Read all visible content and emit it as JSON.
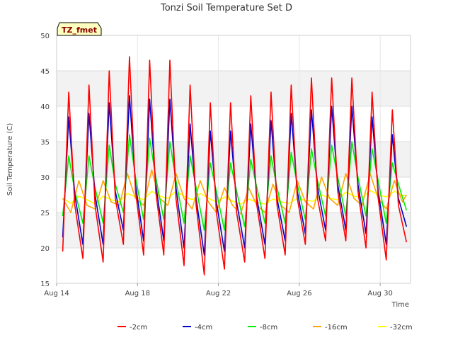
{
  "chart_data": {
    "type": "line",
    "title": "Tonzi Soil Temperature Set D",
    "xlabel": "Time",
    "ylabel": "Soil Temperature (C)",
    "badge": "TZ_fmet",
    "xlim": [
      14,
      31.5
    ],
    "ylim": [
      15,
      50
    ],
    "x_ticks": [
      {
        "value": 14,
        "label": "Aug 14"
      },
      {
        "value": 18,
        "label": "Aug 18"
      },
      {
        "value": 22,
        "label": "Aug 22"
      },
      {
        "value": 26,
        "label": "Aug 26"
      },
      {
        "value": 30,
        "label": "Aug 30"
      }
    ],
    "y_ticks": [
      15,
      20,
      25,
      30,
      35,
      40,
      45,
      50
    ],
    "grid": true,
    "legend_position": "bottom",
    "x_unit": "day of August",
    "series": [
      {
        "name": "-2cm",
        "color": "#ff0000",
        "x": [
          14.3,
          14.6,
          14.9,
          15.3,
          15.6,
          15.9,
          16.3,
          16.6,
          16.9,
          17.3,
          17.6,
          17.9,
          18.3,
          18.6,
          18.9,
          19.3,
          19.6,
          19.9,
          20.3,
          20.6,
          20.9,
          21.3,
          21.6,
          21.9,
          22.3,
          22.6,
          22.9,
          23.3,
          23.6,
          23.9,
          24.3,
          24.6,
          24.9,
          25.3,
          25.6,
          25.9,
          26.3,
          26.6,
          26.9,
          27.3,
          27.6,
          27.9,
          28.3,
          28.6,
          28.9,
          29.3,
          29.6,
          29.9,
          30.3,
          30.6,
          30.9,
          31.3
        ],
        "y": [
          19.5,
          42.0,
          26.0,
          18.5,
          43.0,
          26.0,
          18.0,
          45.0,
          27.0,
          20.5,
          47.0,
          28.0,
          19.0,
          46.5,
          28.0,
          19.0,
          46.5,
          27.0,
          17.5,
          43.0,
          26.0,
          16.2,
          40.5,
          25.0,
          17.0,
          40.5,
          25.0,
          18.0,
          41.5,
          26.0,
          18.5,
          42.0,
          26.0,
          19.0,
          43.0,
          27.0,
          20.5,
          44.0,
          27.0,
          21.0,
          44.0,
          28.0,
          21.0,
          44.0,
          28.0,
          20.0,
          42.0,
          27.0,
          18.3,
          39.5,
          26.0,
          20.8
        ]
      },
      {
        "name": "-4cm",
        "color": "#0000cc",
        "x": [
          14.3,
          14.6,
          14.9,
          15.3,
          15.6,
          15.9,
          16.3,
          16.6,
          16.9,
          17.3,
          17.6,
          17.9,
          18.3,
          18.6,
          18.9,
          19.3,
          19.6,
          19.9,
          20.3,
          20.6,
          20.9,
          21.3,
          21.6,
          21.9,
          22.3,
          22.6,
          22.9,
          23.3,
          23.6,
          23.9,
          24.3,
          24.6,
          24.9,
          25.3,
          25.6,
          25.9,
          26.3,
          26.6,
          26.9,
          27.3,
          27.6,
          27.9,
          28.3,
          28.6,
          28.9,
          29.3,
          29.6,
          29.9,
          30.3,
          30.6,
          30.9,
          31.3
        ],
        "y": [
          21.5,
          38.5,
          27.5,
          20.5,
          39.0,
          27.5,
          20.5,
          40.5,
          28.0,
          22.5,
          41.5,
          29.0,
          21.0,
          41.0,
          29.0,
          21.0,
          41.0,
          28.5,
          20.0,
          37.5,
          27.0,
          19.0,
          36.5,
          26.5,
          19.5,
          36.5,
          26.5,
          20.0,
          37.5,
          27.0,
          20.5,
          38.0,
          27.0,
          21.0,
          39.0,
          28.0,
          22.0,
          39.5,
          28.5,
          22.5,
          40.0,
          29.0,
          22.5,
          40.0,
          29.0,
          22.0,
          38.5,
          28.0,
          20.5,
          36.0,
          27.0,
          23.0
        ]
      },
      {
        "name": "-8cm",
        "color": "#00ee00",
        "x": [
          14.3,
          14.6,
          14.9,
          15.3,
          15.6,
          15.9,
          16.3,
          16.6,
          16.9,
          17.3,
          17.6,
          17.9,
          18.3,
          18.6,
          18.9,
          19.3,
          19.6,
          19.9,
          20.3,
          20.6,
          20.9,
          21.3,
          21.6,
          21.9,
          22.3,
          22.6,
          22.9,
          23.3,
          23.6,
          23.9,
          24.3,
          24.6,
          24.9,
          25.3,
          25.6,
          25.9,
          26.3,
          26.6,
          26.9,
          27.3,
          27.6,
          27.9,
          28.3,
          28.6,
          28.9,
          29.3,
          29.6,
          29.9,
          30.3,
          30.6,
          30.9,
          31.3
        ],
        "y": [
          24.5,
          33.0,
          28.0,
          23.5,
          33.0,
          28.5,
          23.5,
          34.5,
          29.0,
          25.0,
          36.0,
          30.0,
          24.0,
          35.5,
          30.0,
          24.0,
          35.0,
          29.5,
          23.5,
          33.0,
          28.5,
          22.5,
          32.0,
          28.0,
          22.5,
          32.0,
          28.0,
          23.0,
          32.5,
          28.5,
          23.5,
          33.0,
          28.5,
          23.5,
          33.5,
          29.0,
          24.0,
          34.0,
          29.5,
          24.5,
          34.5,
          30.0,
          24.5,
          35.0,
          30.0,
          24.5,
          34.0,
          29.5,
          23.5,
          32.0,
          29.0,
          25.3
        ]
      },
      {
        "name": "-16cm",
        "color": "#ffa500",
        "x": [
          14.3,
          14.7,
          15.1,
          15.5,
          15.9,
          16.3,
          16.7,
          17.1,
          17.5,
          17.9,
          18.3,
          18.7,
          19.1,
          19.5,
          19.9,
          20.3,
          20.7,
          21.1,
          21.5,
          21.9,
          22.3,
          22.7,
          23.1,
          23.5,
          23.9,
          24.3,
          24.7,
          25.1,
          25.5,
          25.9,
          26.3,
          26.7,
          27.1,
          27.5,
          27.9,
          28.3,
          28.7,
          29.1,
          29.5,
          29.9,
          30.3,
          30.7,
          31.1,
          31.3
        ],
        "y": [
          27.0,
          25.0,
          29.5,
          26.0,
          25.5,
          29.5,
          26.5,
          26.0,
          30.5,
          27.0,
          26.0,
          31.0,
          27.0,
          26.0,
          30.5,
          27.0,
          25.5,
          29.5,
          26.5,
          25.0,
          28.5,
          26.0,
          24.8,
          28.5,
          26.0,
          25.0,
          29.0,
          26.0,
          25.0,
          29.5,
          26.5,
          25.5,
          30.0,
          27.0,
          26.0,
          30.5,
          27.0,
          26.0,
          30.5,
          27.0,
          25.5,
          29.5,
          26.5,
          27.5
        ]
      },
      {
        "name": "-32cm",
        "color": "#ffff00",
        "x": [
          14.3,
          14.7,
          15.1,
          15.5,
          15.9,
          16.3,
          16.7,
          17.1,
          17.5,
          17.9,
          18.3,
          18.7,
          19.1,
          19.5,
          19.9,
          20.3,
          20.7,
          21.1,
          21.5,
          21.9,
          22.3,
          22.7,
          23.1,
          23.5,
          23.9,
          24.3,
          24.7,
          25.1,
          25.5,
          25.9,
          26.3,
          26.7,
          27.1,
          27.5,
          27.9,
          28.3,
          28.7,
          29.1,
          29.5,
          29.9,
          30.3,
          30.7,
          31.1,
          31.3
        ],
        "y": [
          27.0,
          26.3,
          27.3,
          26.8,
          26.2,
          27.3,
          26.8,
          26.5,
          27.7,
          27.2,
          26.8,
          28.0,
          27.3,
          27.0,
          28.0,
          27.3,
          26.8,
          27.7,
          27.0,
          26.5,
          27.2,
          26.6,
          26.2,
          26.9,
          26.4,
          26.2,
          26.9,
          26.5,
          26.3,
          27.0,
          26.7,
          26.6,
          27.5,
          27.0,
          26.8,
          27.9,
          27.3,
          27.1,
          28.1,
          27.5,
          27.2,
          28.0,
          27.4,
          27.4
        ]
      }
    ]
  }
}
